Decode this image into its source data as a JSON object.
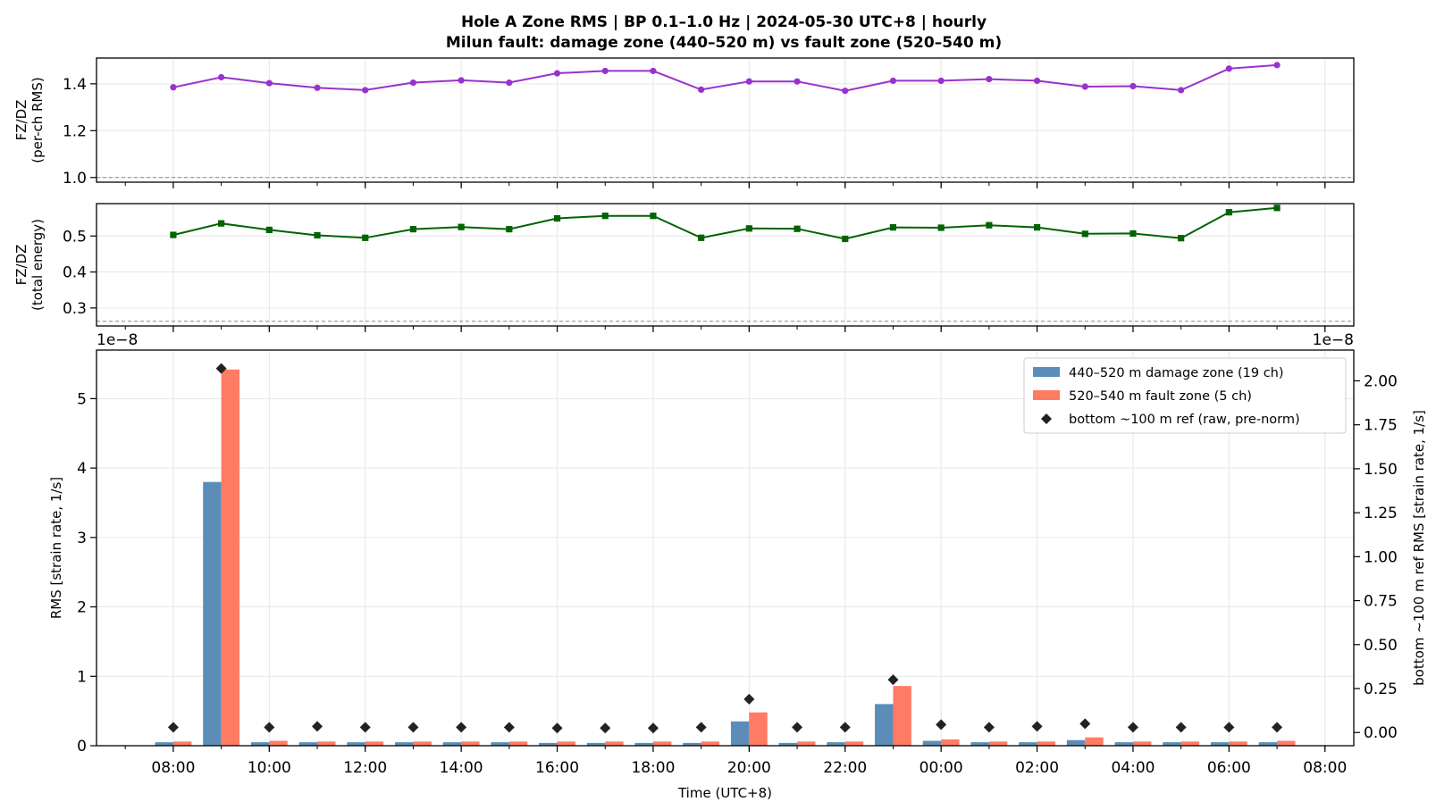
{
  "figure": {
    "title_line1": "Hole A Zone RMS  |  BP 0.1–1.0 Hz  |  2024-05-30 UTC+8  |  hourly",
    "title_line2": "Milun fault: damage zone (440–520 m) vs fault zone (520–540 m)"
  },
  "colors": {
    "ratio_rms": "#9932cc",
    "ratio_energy": "#006400",
    "damage_zone": "#5b8db8",
    "fault_zone": "#ff7b64",
    "bottom_ref": "#222222",
    "refline": "#888888",
    "grid": "#e6e6e6"
  },
  "chart_data": [
    {
      "type": "line",
      "ylabel_line1": "FZ/DZ",
      "ylabel_line2": "(per-ch RMS)",
      "ylim": [
        0.98,
        1.51
      ],
      "yticks": [
        1.0,
        1.2,
        1.4
      ],
      "ytick_labels": [
        "1.0",
        "1.2",
        "1.4"
      ],
      "reference_line": 1.0,
      "marker": "circle",
      "grid": true,
      "series": [
        {
          "values": [
            1.385,
            1.428,
            1.403,
            1.383,
            1.373,
            1.405,
            1.415,
            1.405,
            1.445,
            1.455,
            1.455,
            1.375,
            1.41,
            1.41,
            1.37,
            1.413,
            1.413,
            1.42,
            1.413,
            1.388,
            1.39,
            1.373,
            1.465,
            1.48
          ]
        }
      ]
    },
    {
      "type": "line",
      "ylabel_line1": "FZ/DZ",
      "ylabel_line2": "(total energy)",
      "ylim": [
        0.25,
        0.59
      ],
      "yticks": [
        0.3,
        0.4,
        0.5
      ],
      "ytick_labels": [
        "0.3",
        "0.4",
        "0.5"
      ],
      "reference_line": 0.263,
      "marker": "square",
      "grid": true,
      "series": [
        {
          "values": [
            0.503,
            0.535,
            0.517,
            0.502,
            0.495,
            0.519,
            0.525,
            0.519,
            0.549,
            0.556,
            0.556,
            0.495,
            0.521,
            0.52,
            0.492,
            0.524,
            0.523,
            0.53,
            0.524,
            0.506,
            0.507,
            0.494,
            0.566,
            0.578
          ]
        }
      ]
    },
    {
      "type": "bar",
      "xlabel": "Time (UTC+8)",
      "ylabel": "RMS  [strain rate, 1/s]",
      "y2label": "bottom ~100 m ref RMS  [strain rate, 1/s]",
      "offset_text_left": "1e−8",
      "offset_text_right": "1e−8",
      "ylim": [
        0,
        5.7
      ],
      "yticks": [
        0,
        1,
        2,
        3,
        4,
        5
      ],
      "ytick_labels": [
        "0",
        "1",
        "2",
        "3",
        "4",
        "5"
      ],
      "y2lim": [
        -0.075,
        2.175
      ],
      "y2ticks": [
        0.0,
        0.25,
        0.5,
        0.75,
        1.0,
        1.25,
        1.5,
        1.75,
        2.0
      ],
      "y2tick_labels": [
        "0.00",
        "0.25",
        "0.50",
        "0.75",
        "1.00",
        "1.25",
        "1.50",
        "1.75",
        "2.00"
      ],
      "x_range_hours": [
        6.4,
        32.6
      ],
      "x_hours": [
        8,
        9,
        10,
        11,
        12,
        13,
        14,
        15,
        16,
        17,
        18,
        19,
        20,
        21,
        22,
        23,
        24,
        25,
        26,
        27,
        28,
        29,
        30,
        31
      ],
      "xtick_hours": [
        8,
        10,
        12,
        14,
        16,
        18,
        20,
        22,
        24,
        26,
        28,
        30,
        32
      ],
      "xtick_labels": [
        "08:00",
        "10:00",
        "12:00",
        "14:00",
        "16:00",
        "18:00",
        "20:00",
        "22:00",
        "00:00",
        "02:00",
        "04:00",
        "06:00",
        "08:00"
      ],
      "grid": true,
      "legend_position": "upper right",
      "series": [
        {
          "name": "440–520 m  damage zone (19 ch)",
          "kind": "bar",
          "axis": "left",
          "values": [
            0.05,
            3.8,
            0.05,
            0.05,
            0.05,
            0.05,
            0.05,
            0.05,
            0.04,
            0.04,
            0.04,
            0.04,
            0.35,
            0.04,
            0.05,
            0.6,
            0.07,
            0.05,
            0.05,
            0.08,
            0.05,
            0.05,
            0.05,
            0.05
          ]
        },
        {
          "name": "520–540 m  fault zone (5 ch)",
          "kind": "bar",
          "axis": "left",
          "values": [
            0.06,
            5.42,
            0.07,
            0.06,
            0.06,
            0.06,
            0.06,
            0.06,
            0.06,
            0.06,
            0.06,
            0.06,
            0.48,
            0.06,
            0.06,
            0.86,
            0.09,
            0.06,
            0.06,
            0.12,
            0.06,
            0.06,
            0.06,
            0.07
          ]
        },
        {
          "name": "bottom ~100 m ref (raw, pre-norm)",
          "kind": "marker",
          "axis": "right",
          "values": [
            0.03,
            2.07,
            0.03,
            0.035,
            0.03,
            0.03,
            0.03,
            0.03,
            0.025,
            0.025,
            0.025,
            0.03,
            0.19,
            0.03,
            0.03,
            0.3,
            0.045,
            0.03,
            0.035,
            0.05,
            0.03,
            0.03,
            0.03,
            0.03
          ]
        }
      ]
    }
  ]
}
